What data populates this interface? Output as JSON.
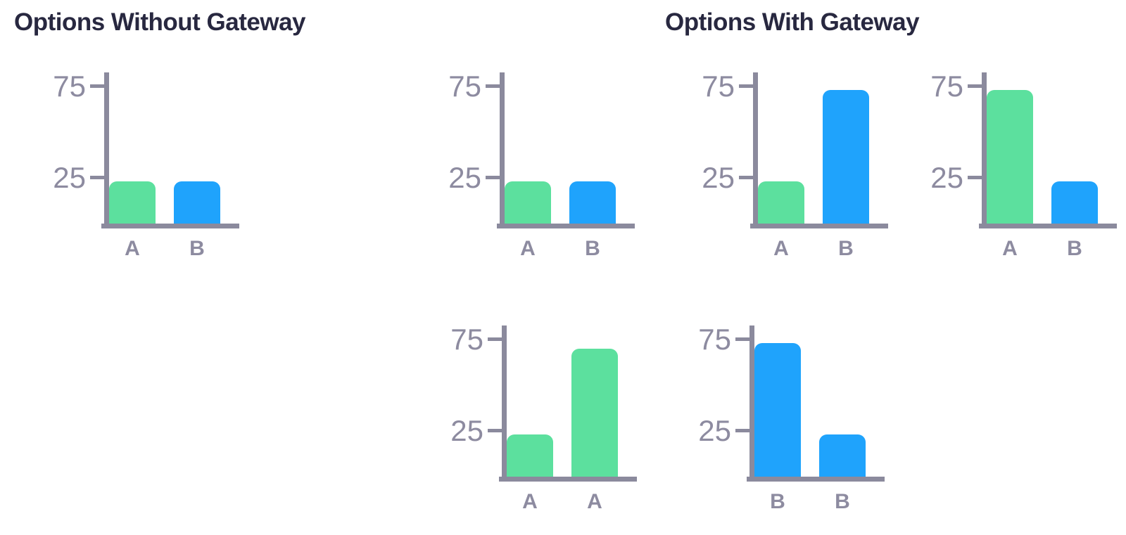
{
  "page": {
    "background": "#FFFFFF"
  },
  "colors": {
    "green_bar": "#5CE09E",
    "blue_bar": "#1FA3FC",
    "axis": "#8B8A9D",
    "tick_label": "#8D8BA0",
    "title": "#282840"
  },
  "sections": [
    {
      "title": "Options Without Gateway"
    },
    {
      "title": "Options With Gateway"
    }
  ],
  "chart_data": [
    {
      "type": "bar",
      "section": "Options Without Gateway",
      "categories": [
        "A",
        "B"
      ],
      "values": [
        23,
        23
      ],
      "bar_colors": [
        "#5CE09E",
        "#1FA3FC"
      ],
      "yticks": [
        25,
        75
      ],
      "ylim": [
        0,
        85
      ],
      "grid": false,
      "legend": "none"
    },
    {
      "type": "bar",
      "section": "Options With Gateway",
      "categories": [
        "A",
        "B"
      ],
      "values": [
        23,
        23
      ],
      "bar_colors": [
        "#5CE09E",
        "#1FA3FC"
      ],
      "yticks": [
        25,
        75
      ],
      "ylim": [
        0,
        85
      ],
      "grid": false,
      "legend": "none"
    },
    {
      "type": "bar",
      "section": "Options With Gateway",
      "categories": [
        "A",
        "B"
      ],
      "values": [
        23,
        73
      ],
      "bar_colors": [
        "#5CE09E",
        "#1FA3FC"
      ],
      "yticks": [
        25,
        75
      ],
      "ylim": [
        0,
        85
      ],
      "grid": false,
      "legend": "none"
    },
    {
      "type": "bar",
      "section": "Options With Gateway",
      "categories": [
        "A",
        "B"
      ],
      "values": [
        73,
        23
      ],
      "bar_colors": [
        "#5CE09E",
        "#1FA3FC"
      ],
      "yticks": [
        25,
        75
      ],
      "ylim": [
        0,
        85
      ],
      "grid": false,
      "legend": "none"
    },
    {
      "type": "bar",
      "section": "Options With Gateway",
      "categories": [
        "A",
        "A"
      ],
      "values": [
        23,
        70
      ],
      "bar_colors": [
        "#5CE09E",
        "#5CE09E"
      ],
      "yticks": [
        25,
        75
      ],
      "ylim": [
        0,
        85
      ],
      "grid": false,
      "legend": "none"
    },
    {
      "type": "bar",
      "section": "Options With Gateway",
      "categories": [
        "B",
        "B"
      ],
      "values": [
        73,
        23
      ],
      "bar_colors": [
        "#1FA3FC",
        "#1FA3FC"
      ],
      "yticks": [
        25,
        75
      ],
      "ylim": [
        0,
        85
      ],
      "grid": false,
      "legend": "none"
    }
  ]
}
